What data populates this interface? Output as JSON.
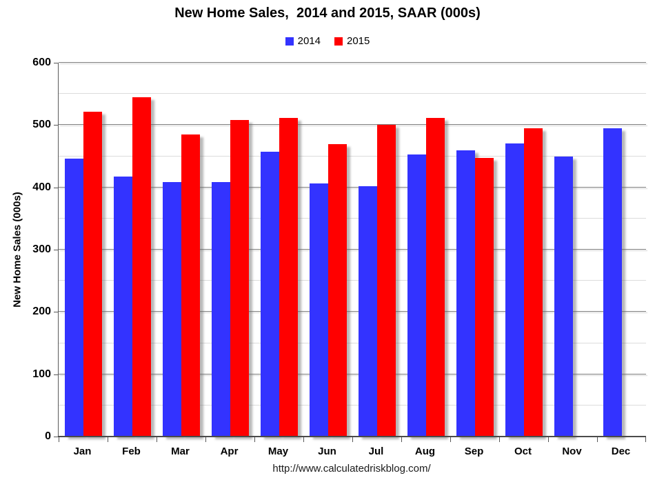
{
  "title": "New Home Sales,  2014 and 2015, SAAR (000s)",
  "footer_url": "http://www.calculatedriskblog.com/",
  "chart_data": {
    "type": "bar",
    "title": "New Home Sales,  2014 and 2015, SAAR (000s)",
    "categories": [
      "Jan",
      "Feb",
      "Mar",
      "Apr",
      "May",
      "Jun",
      "Jul",
      "Aug",
      "Sep",
      "Oct",
      "Nov",
      "Dec"
    ],
    "series": [
      {
        "name": "2014",
        "color": "#3333FF",
        "values": [
          446,
          417,
          409,
          408,
          457,
          406,
          402,
          453,
          459,
          471,
          449,
          495
        ]
      },
      {
        "name": "2015",
        "color": "#FF0000",
        "values": [
          521,
          545,
          485,
          508,
          512,
          469,
          500,
          512,
          447,
          495,
          null,
          null
        ]
      }
    ],
    "xlabel": "",
    "ylabel": "New Home Sales (000s)",
    "ylim": [
      0,
      600
    ],
    "y_major_step": 100,
    "y_minor_step": 50,
    "y_tick_labels": [
      "0",
      "100",
      "200",
      "300",
      "400",
      "500",
      "600"
    ],
    "grid": true,
    "legend_position": "top",
    "gridline_major_color": "#7f7f7f",
    "gridline_minor_color": "#dcdcdc",
    "axis_color": "#595959"
  }
}
